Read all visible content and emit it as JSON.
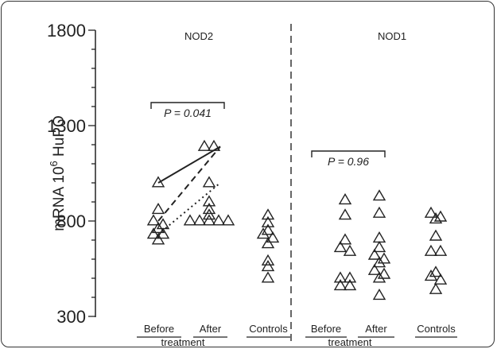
{
  "chart_data": {
    "type": "scatter",
    "ylabel": "mRNA 10",
    "ylabel_sup": "6",
    "ylabel_tail": " HuPO",
    "ylim": [
      300,
      1800
    ],
    "yticks": [
      300,
      800,
      1300,
      1800
    ],
    "panels": [
      {
        "name": "NOD2",
        "groups": [
          {
            "label": "Before",
            "values": [
              1000,
              860,
              800,
              780,
              760,
              730,
              730,
              700
            ]
          },
          {
            "label": "After",
            "values": [
              1190,
              1190,
              1000,
              900,
              860,
              830,
              800,
              800,
              800,
              800,
              800
            ]
          },
          {
            "label": "Controls",
            "values": [
              830,
              790,
              750,
              730,
              710,
              680,
              590,
              560,
              500
            ]
          }
        ],
        "sublabel": "treatment",
        "pvalue": "P = 0.041",
        "pairs": [
          {
            "from": 1000,
            "to": 1190,
            "style": "solid"
          },
          {
            "from": 800,
            "to": 1190,
            "style": "dashed"
          },
          {
            "from": 730,
            "to": 1000,
            "style": "dotted"
          }
        ]
      },
      {
        "name": "NOD1",
        "groups": [
          {
            "label": "Before",
            "values": [
              910,
              830,
              700,
              660,
              640,
              500,
              500,
              460,
              460
            ]
          },
          {
            "label": "After",
            "values": [
              930,
              840,
              710,
              660,
              620,
              600,
              580,
              540,
              520,
              500,
              410
            ]
          },
          {
            "label": "Controls",
            "values": [
              840,
              820,
              810,
              720,
              640,
              640,
              530,
              510,
              490,
              440
            ]
          }
        ],
        "sublabel": "treatment",
        "pvalue": "P = 0.96",
        "pairs": []
      }
    ]
  }
}
